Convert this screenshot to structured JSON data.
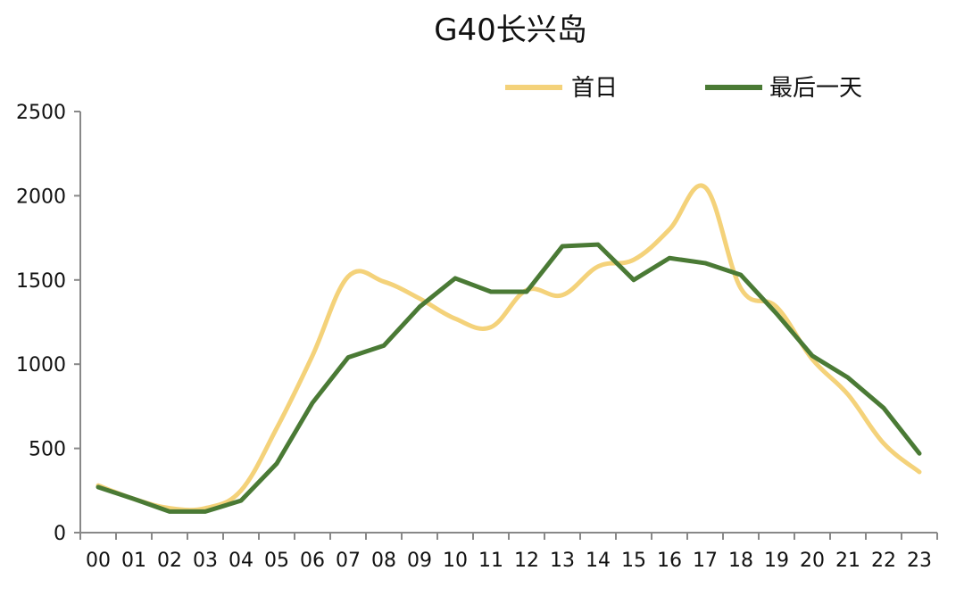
{
  "chart_data": {
    "type": "line",
    "title": "G40长兴岛",
    "xlabel": "",
    "ylabel": "",
    "categories": [
      "00",
      "01",
      "02",
      "03",
      "04",
      "05",
      "06",
      "07",
      "08",
      "09",
      "10",
      "11",
      "12",
      "13",
      "14",
      "15",
      "16",
      "17",
      "18",
      "19",
      "20",
      "21",
      "22",
      "23"
    ],
    "y_ticks": [
      "0",
      "500",
      "1000",
      "1500",
      "2000",
      "2500"
    ],
    "ylim": [
      0,
      2500
    ],
    "grid": false,
    "legend_position": "top-right",
    "series": [
      {
        "name": "首日",
        "color": "#F4D27A",
        "smooth": true,
        "values": [
          280,
          200,
          145,
          145,
          250,
          620,
          1050,
          1520,
          1490,
          1390,
          1270,
          1220,
          1440,
          1410,
          1580,
          1620,
          1800,
          2050,
          1450,
          1340,
          1030,
          820,
          530,
          360
        ]
      },
      {
        "name": "最后一天",
        "color": "#4A7A35",
        "smooth": false,
        "values": [
          270,
          200,
          125,
          125,
          190,
          410,
          770,
          1040,
          1110,
          1340,
          1510,
          1430,
          1430,
          1700,
          1710,
          1500,
          1630,
          1600,
          1530,
          1300,
          1050,
          920,
          740,
          470
        ]
      }
    ]
  }
}
